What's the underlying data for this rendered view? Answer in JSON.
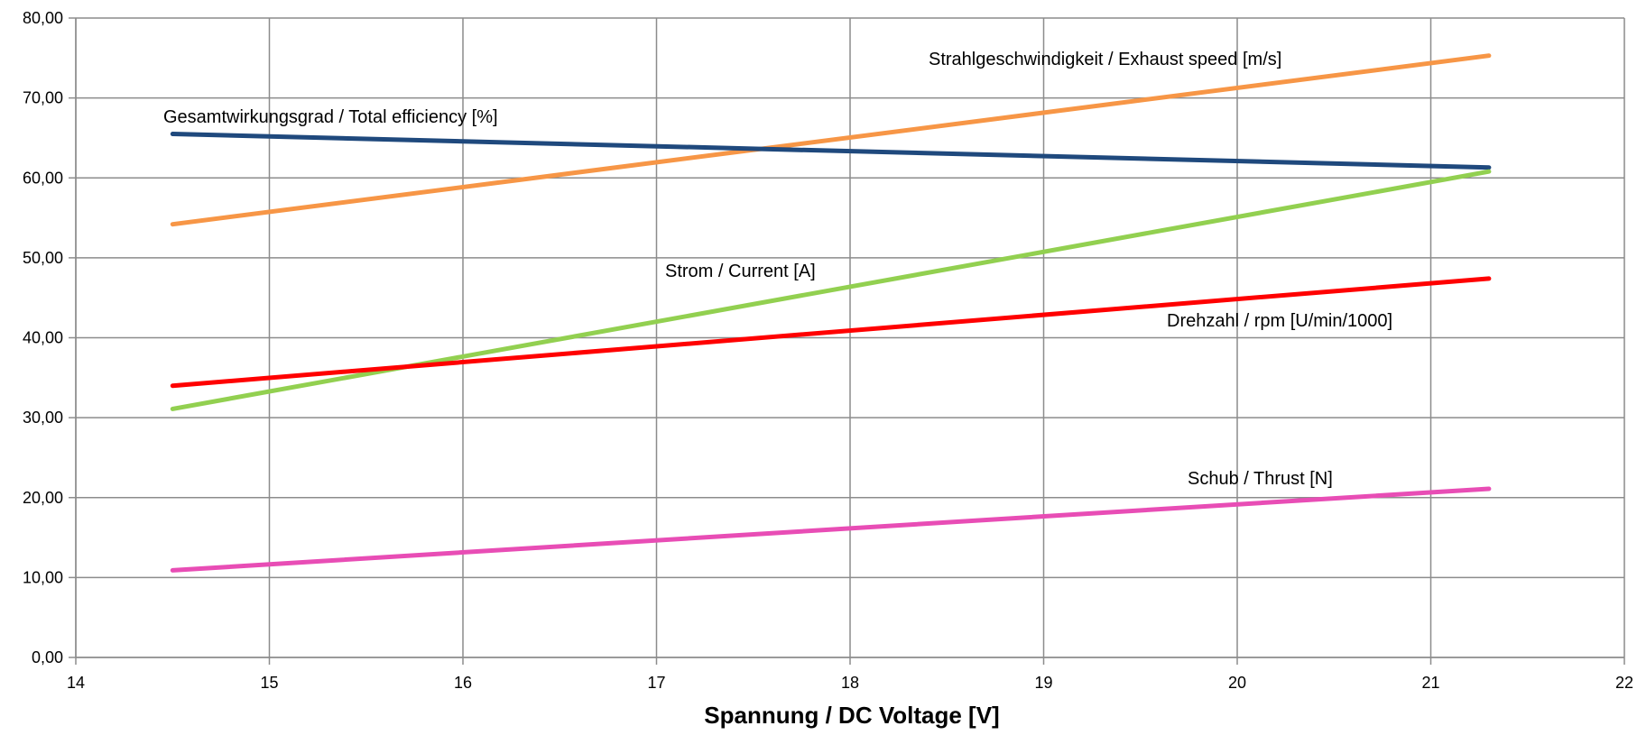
{
  "chart_data": {
    "type": "line",
    "title": "",
    "xlabel": "Spannung / DC Voltage [V]",
    "ylabel": "",
    "xlim": [
      14,
      22
    ],
    "ylim": [
      0,
      80
    ],
    "x_ticks": [
      14,
      15,
      16,
      17,
      18,
      19,
      20,
      21,
      22
    ],
    "y_ticks": [
      "0,00",
      "10,00",
      "20,00",
      "30,00",
      "40,00",
      "50,00",
      "60,00",
      "70,00",
      "80,00"
    ],
    "grid": true,
    "legend": "none",
    "series": [
      {
        "name": "Strahlgeschwindigkeit / Exhaust speed [m/s]",
        "color": "#F79646",
        "x": [
          14.5,
          21.3
        ],
        "y": [
          54.2,
          75.3
        ]
      },
      {
        "name": "Gesamtwirkungsgrad / Total efficiency [%]",
        "color": "#1F497D",
        "x": [
          14.5,
          21.3
        ],
        "y": [
          65.5,
          61.3
        ]
      },
      {
        "name": "Strom / Current [A]",
        "color": "#92D050",
        "x": [
          14.5,
          21.3
        ],
        "y": [
          31.1,
          60.8
        ]
      },
      {
        "name": "Drehzahl / rpm [U/min/1000]",
        "color": "#FF0000",
        "x": [
          14.5,
          21.3
        ],
        "y": [
          34.0,
          47.4
        ]
      },
      {
        "name": "Schub / Thrust [N]",
        "color": "#E84DB5",
        "x": [
          14.5,
          21.3
        ],
        "y": [
          10.9,
          21.1
        ]
      }
    ]
  }
}
